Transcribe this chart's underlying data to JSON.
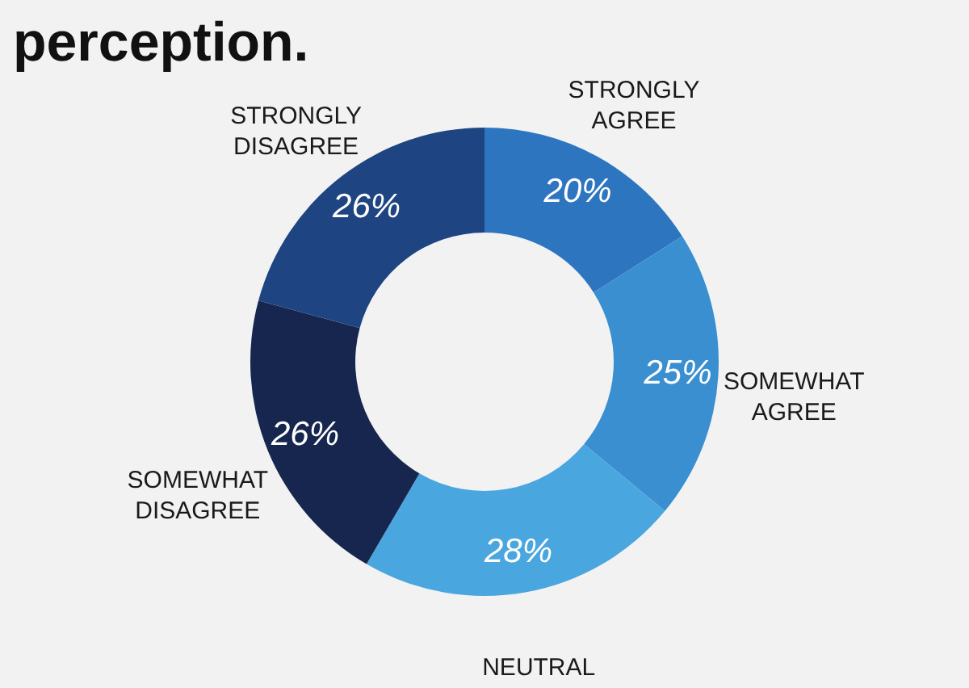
{
  "chart_data": {
    "type": "donut",
    "title": "perception.",
    "categories": [
      "STRONGLY AGREE",
      "SOMEWHAT AGREE",
      "NEUTRAL",
      "SOMEWHAT DISAGREE",
      "STRONGLY DISAGREE"
    ],
    "values": [
      20,
      25,
      28,
      26,
      26
    ],
    "value_labels": [
      "20%",
      "25%",
      "28%",
      "26%",
      "26%"
    ],
    "colors": [
      "#2e75c0",
      "#3a8fd1",
      "#4aa6df",
      "#16264f",
      "#1e4482"
    ],
    "legend": false
  }
}
